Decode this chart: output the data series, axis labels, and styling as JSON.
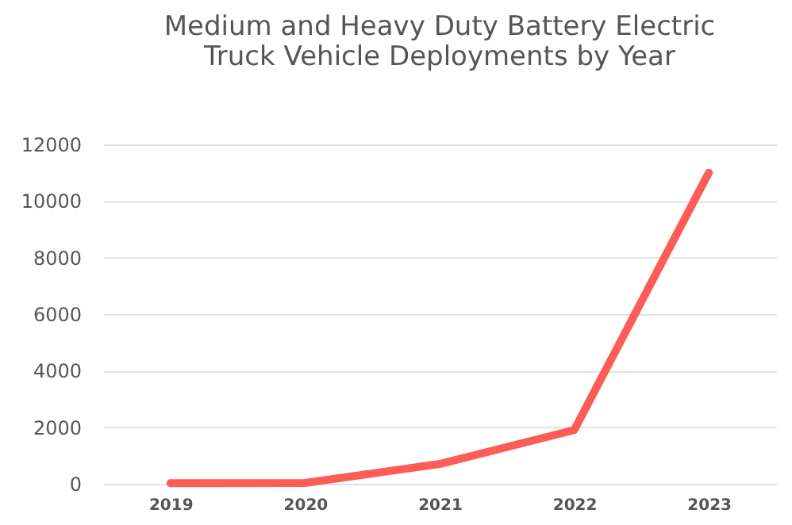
{
  "chart_data": {
    "type": "line",
    "title": [
      "Medium and Heavy Duty Battery Electric",
      "Truck Vehicle Deployments by Year"
    ],
    "categories": [
      "2019",
      "2020",
      "2021",
      "2022",
      "2023"
    ],
    "series": [
      {
        "color": "#fd5c57",
        "values": [
          20,
          30,
          700,
          1900,
          11000
        ]
      }
    ],
    "ylim": [
      0,
      12000
    ],
    "yticks": [
      0,
      2000,
      4000,
      6000,
      8000,
      10000,
      12000
    ],
    "grid": "y",
    "marker": "none",
    "line_style": "solid"
  }
}
